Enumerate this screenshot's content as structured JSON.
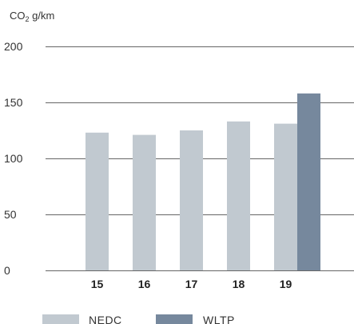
{
  "chart_data": {
    "type": "bar",
    "ylabel_prefix": "CO",
    "ylabel_sub": "2",
    "ylabel_suffix": " g/km",
    "categories": [
      "15",
      "16",
      "17",
      "18",
      "19"
    ],
    "series": [
      {
        "name": "NEDC",
        "color": "#c1c9d0",
        "values": [
          123,
          121,
          125,
          133,
          131
        ]
      },
      {
        "name": "WLTP",
        "color": "#76889d",
        "values": [
          null,
          null,
          null,
          null,
          158
        ]
      }
    ],
    "yticks": [
      0,
      50,
      100,
      150,
      200
    ],
    "ylim": [
      0,
      200
    ],
    "grid": true,
    "legend_placement": "bottom"
  }
}
